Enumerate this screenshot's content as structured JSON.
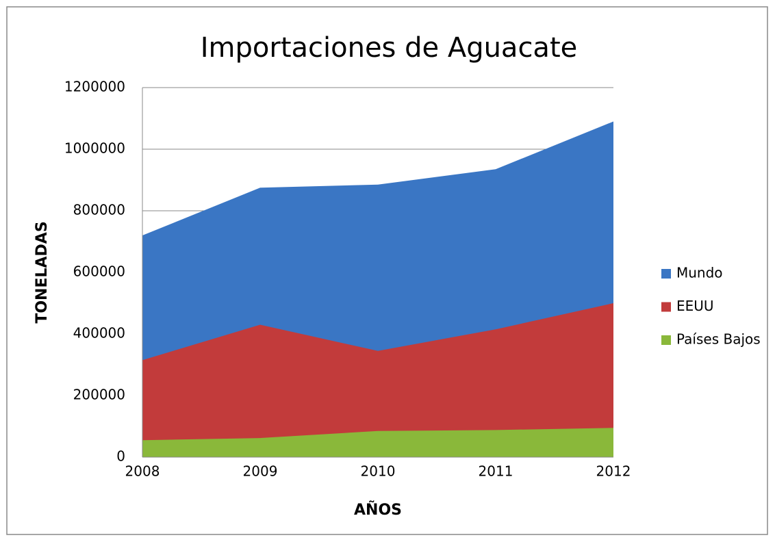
{
  "chart_data": {
    "type": "area",
    "title": "Importaciones de Aguacate",
    "x_label": "AÑOS",
    "y_label": "TONELADAS",
    "categories": [
      "2008",
      "2009",
      "2010",
      "2011",
      "2012"
    ],
    "series": [
      {
        "name": "Mundo",
        "color": "#3a76c4",
        "values": [
          720000,
          875000,
          885000,
          935000,
          1090000
        ]
      },
      {
        "name": "EEUU",
        "color": "#c23b3b",
        "values": [
          315000,
          430000,
          345000,
          415000,
          500000
        ]
      },
      {
        "name": "Países Bajos",
        "color": "#8ab83a",
        "values": [
          55000,
          62000,
          85000,
          88000,
          95000
        ]
      }
    ],
    "ylim": [
      0,
      1200000
    ],
    "yticks": [
      0,
      200000,
      400000,
      600000,
      800000,
      1000000,
      1200000
    ],
    "grid": true,
    "legend": "right"
  }
}
